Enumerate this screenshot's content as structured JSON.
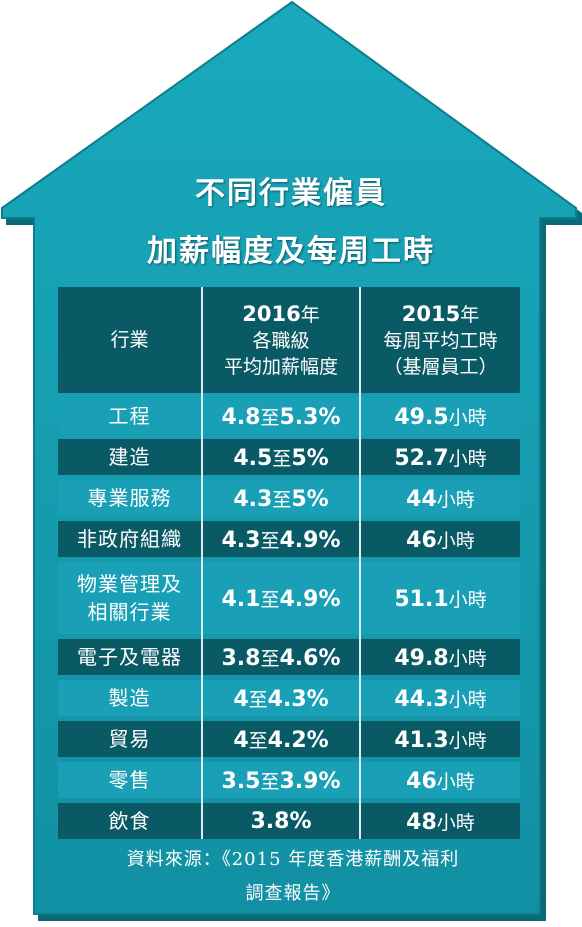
{
  "title": {
    "line1": "不同行業僱員",
    "line2": "加薪幅度及每周工時"
  },
  "table": {
    "headers": {
      "industry": "行業",
      "raise_year": "2016",
      "raise_year_suffix": "年",
      "raise_line1": "各職級",
      "raise_line2": "平均加薪幅度",
      "hours_year": "2015",
      "hours_year_suffix": "年",
      "hours_line1": "每周平均工時",
      "hours_line2": "（基層員工）"
    },
    "rows": [
      {
        "industry": "工程",
        "raise_low": "4.8",
        "to": "至",
        "raise_high": "5.3%",
        "hours": "49.5",
        "hours_unit": "小時"
      },
      {
        "industry": "建造",
        "raise_low": "4.5",
        "to": "至",
        "raise_high": "5%",
        "hours": "52.7",
        "hours_unit": "小時"
      },
      {
        "industry": "專業服務",
        "raise_low": "4.3",
        "to": "至",
        "raise_high": "5%",
        "hours": "44",
        "hours_unit": "小時"
      },
      {
        "industry": "非政府組織",
        "raise_low": "4.3",
        "to": "至",
        "raise_high": "4.9%",
        "hours": "46",
        "hours_unit": "小時"
      },
      {
        "industry_line1": "物業管理及",
        "industry_line2": "相關行業",
        "raise_low": "4.1",
        "to": "至",
        "raise_high": "4.9%",
        "hours": "51.1",
        "hours_unit": "小時"
      },
      {
        "industry": "電子及電器",
        "raise_low": "3.8",
        "to": "至",
        "raise_high": "4.6%",
        "hours": "49.8",
        "hours_unit": "小時"
      },
      {
        "industry": "製造",
        "raise_low": "4",
        "to": "至",
        "raise_high": "4.3%",
        "hours": "44.3",
        "hours_unit": "小時"
      },
      {
        "industry": "貿易",
        "raise_low": "4",
        "to": "至",
        "raise_high": "4.2%",
        "hours": "41.3",
        "hours_unit": "小時"
      },
      {
        "industry": "零售",
        "raise_low": "3.5",
        "to": "至",
        "raise_high": "3.9%",
        "hours": "46",
        "hours_unit": "小時"
      },
      {
        "industry": "飲食",
        "raise_single": "3.8%",
        "hours": "48",
        "hours_unit": "小時"
      }
    ]
  },
  "source": {
    "line1": "資料來源：《2015 年度香港薪酬及福利",
    "line2": "調查報告》"
  },
  "colors": {
    "house_fill": "#1596a8",
    "house_edge": "#0b6a78",
    "row_dark": "#0a5a66",
    "row_light": "#1aa0b6",
    "text": "#ffffff"
  }
}
